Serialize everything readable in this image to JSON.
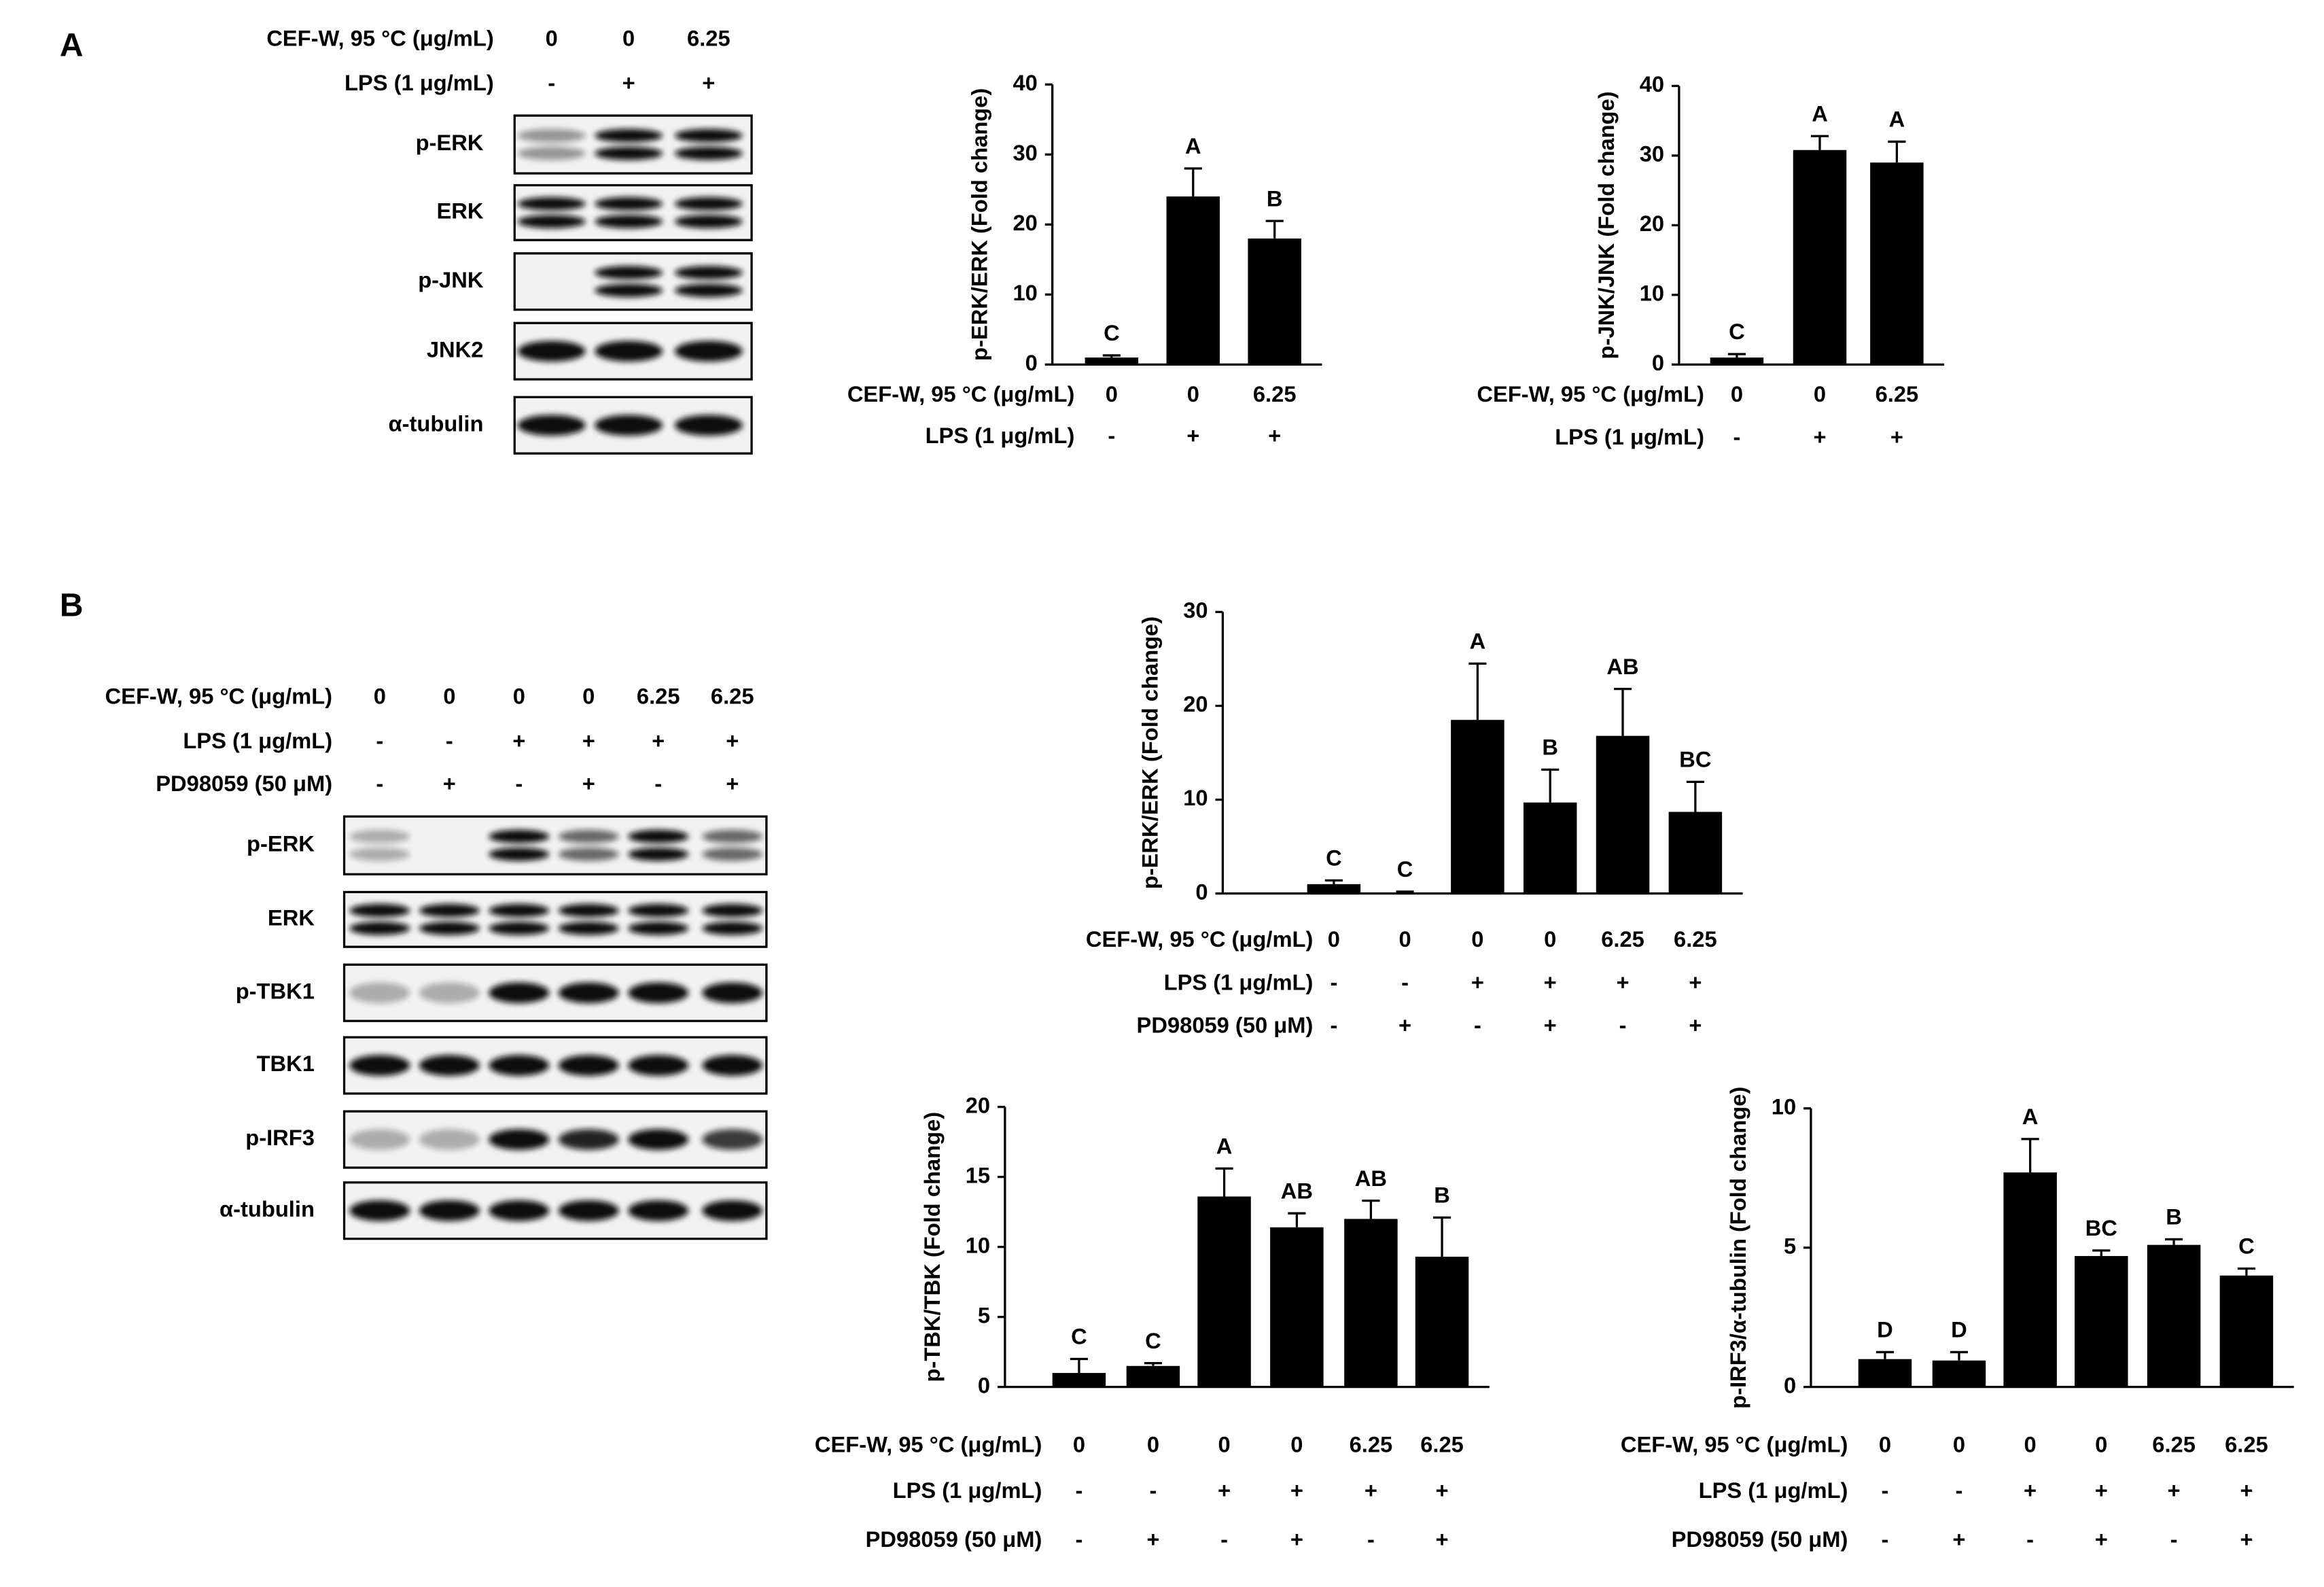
{
  "panel_labels": [
    "A",
    "B"
  ],
  "blots": [
    {
      "conditions": [
        {
          "label": "CEF-W, 95 °C (μg/mL)",
          "values": [
            "0",
            "0",
            "6.25"
          ]
        },
        {
          "label": "LPS (1 μg/mL)",
          "values": [
            "-",
            "+",
            "+"
          ]
        }
      ],
      "bands": [
        "p-ERK",
        "ERK",
        "p-JNK",
        "JNK2",
        "α-tubulin"
      ]
    },
    {
      "conditions": [
        {
          "label": "CEF-W, 95 °C (μg/mL)",
          "values": [
            "0",
            "0",
            "0",
            "0",
            "6.25",
            "6.25"
          ]
        },
        {
          "label": "LPS (1 μg/mL)",
          "values": [
            "-",
            "-",
            "+",
            "+",
            "+",
            "+"
          ]
        },
        {
          "label": "PD98059 (50 μM)",
          "values": [
            "-",
            "+",
            "-",
            "+",
            "-",
            "+"
          ]
        }
      ],
      "bands": [
        "p-ERK",
        "ERK",
        "p-TBK1",
        "TBK1",
        "p-IRF3",
        "α-tubulin"
      ]
    }
  ],
  "chart_data": [
    {
      "type": "bar",
      "ylabel": "p-ERK/ERK (Fold change)",
      "color": "#000000",
      "conditions": [
        {
          "label": "CEF-W, 95 °C (μg/mL)",
          "values": [
            "0",
            "0",
            "6.25"
          ]
        },
        {
          "label": "LPS (1 μg/mL)",
          "values": [
            "-",
            "+",
            "+"
          ]
        }
      ],
      "values": [
        1,
        24,
        18
      ],
      "errors": [
        0.3,
        4,
        2.5
      ],
      "annotations": [
        "C",
        "A",
        "B"
      ],
      "ylim": [
        0,
        40
      ],
      "yticks": [
        0,
        10,
        20,
        30,
        40
      ]
    },
    {
      "type": "bar",
      "ylabel": "p-JNK/JNK (Fold change)",
      "color": "#000000",
      "conditions": [
        {
          "label": "CEF-W, 95 °C (μg/mL)",
          "values": [
            "0",
            "0",
            "6.25"
          ]
        },
        {
          "label": "LPS (1 μg/mL)",
          "values": [
            "-",
            "+",
            "+"
          ]
        }
      ],
      "values": [
        1,
        30.8,
        29
      ],
      "errors": [
        0.5,
        2,
        3
      ],
      "annotations": [
        "C",
        "A",
        "A"
      ],
      "ylim": [
        0,
        40
      ],
      "yticks": [
        0,
        10,
        20,
        30,
        40
      ]
    },
    {
      "type": "bar",
      "ylabel": "p-ERK/ERK (Fold change)",
      "color": "#000000",
      "conditions": [
        {
          "label": "CEF-W, 95 °C (μg/mL)",
          "values": [
            "0",
            "0",
            "0",
            "0",
            "6.25",
            "6.25"
          ]
        },
        {
          "label": "LPS (1 μg/mL)",
          "values": [
            "-",
            "-",
            "+",
            "+",
            "+",
            "+"
          ]
        },
        {
          "label": "PD98059 (50 μM)",
          "values": [
            "-",
            "+",
            "-",
            "+",
            "-",
            "+"
          ]
        }
      ],
      "values": [
        1,
        0.1,
        18.5,
        9.7,
        16.8,
        8.7
      ],
      "errors": [
        0.4,
        0.1,
        6,
        3.5,
        5,
        3.2
      ],
      "annotations": [
        "C",
        "C",
        "A",
        "B",
        "AB",
        "BC"
      ],
      "ylim": [
        0,
        30
      ],
      "yticks": [
        0,
        10,
        20,
        30
      ]
    },
    {
      "type": "bar",
      "ylabel": "p-TBK/TBK (Fold change)",
      "color": "#000000",
      "conditions": [
        {
          "label": "CEF-W, 95 °C (μg/mL)",
          "values": [
            "0",
            "0",
            "0",
            "0",
            "6.25",
            "6.25"
          ]
        },
        {
          "label": "LPS (1 μg/mL)",
          "values": [
            "-",
            "-",
            "+",
            "+",
            "+",
            "+"
          ]
        },
        {
          "label": "PD98059 (50 μM)",
          "values": [
            "-",
            "+",
            "-",
            "+",
            "-",
            "+"
          ]
        }
      ],
      "values": [
        1,
        1.5,
        13.6,
        11.4,
        12,
        9.3
      ],
      "errors": [
        1,
        0.2,
        2,
        1,
        1.3,
        2.8
      ],
      "annotations": [
        "C",
        "C",
        "A",
        "AB",
        "AB",
        "B"
      ],
      "ylim": [
        0,
        20
      ],
      "yticks": [
        0,
        5,
        10,
        15,
        20
      ]
    },
    {
      "type": "bar",
      "ylabel": "p-IRF3/α-tubulin (Fold change)",
      "color": "#000000",
      "conditions": [
        {
          "label": "CEF-W, 95 °C (μg/mL)",
          "values": [
            "0",
            "0",
            "0",
            "0",
            "6.25",
            "6.25"
          ]
        },
        {
          "label": "LPS (1 μg/mL)",
          "values": [
            "-",
            "-",
            "+",
            "+",
            "+",
            "+"
          ]
        },
        {
          "label": "PD98059 (50 μM)",
          "values": [
            "-",
            "+",
            "-",
            "+",
            "-",
            "+"
          ]
        }
      ],
      "values": [
        1,
        0.95,
        7.7,
        4.7,
        5.1,
        4.0
      ],
      "errors": [
        0.25,
        0.3,
        1.2,
        0.2,
        0.2,
        0.25
      ],
      "annotations": [
        "D",
        "D",
        "A",
        "BC",
        "B",
        "C"
      ],
      "ylim": [
        0,
        10
      ],
      "yticks": [
        0,
        5,
        10
      ]
    }
  ]
}
